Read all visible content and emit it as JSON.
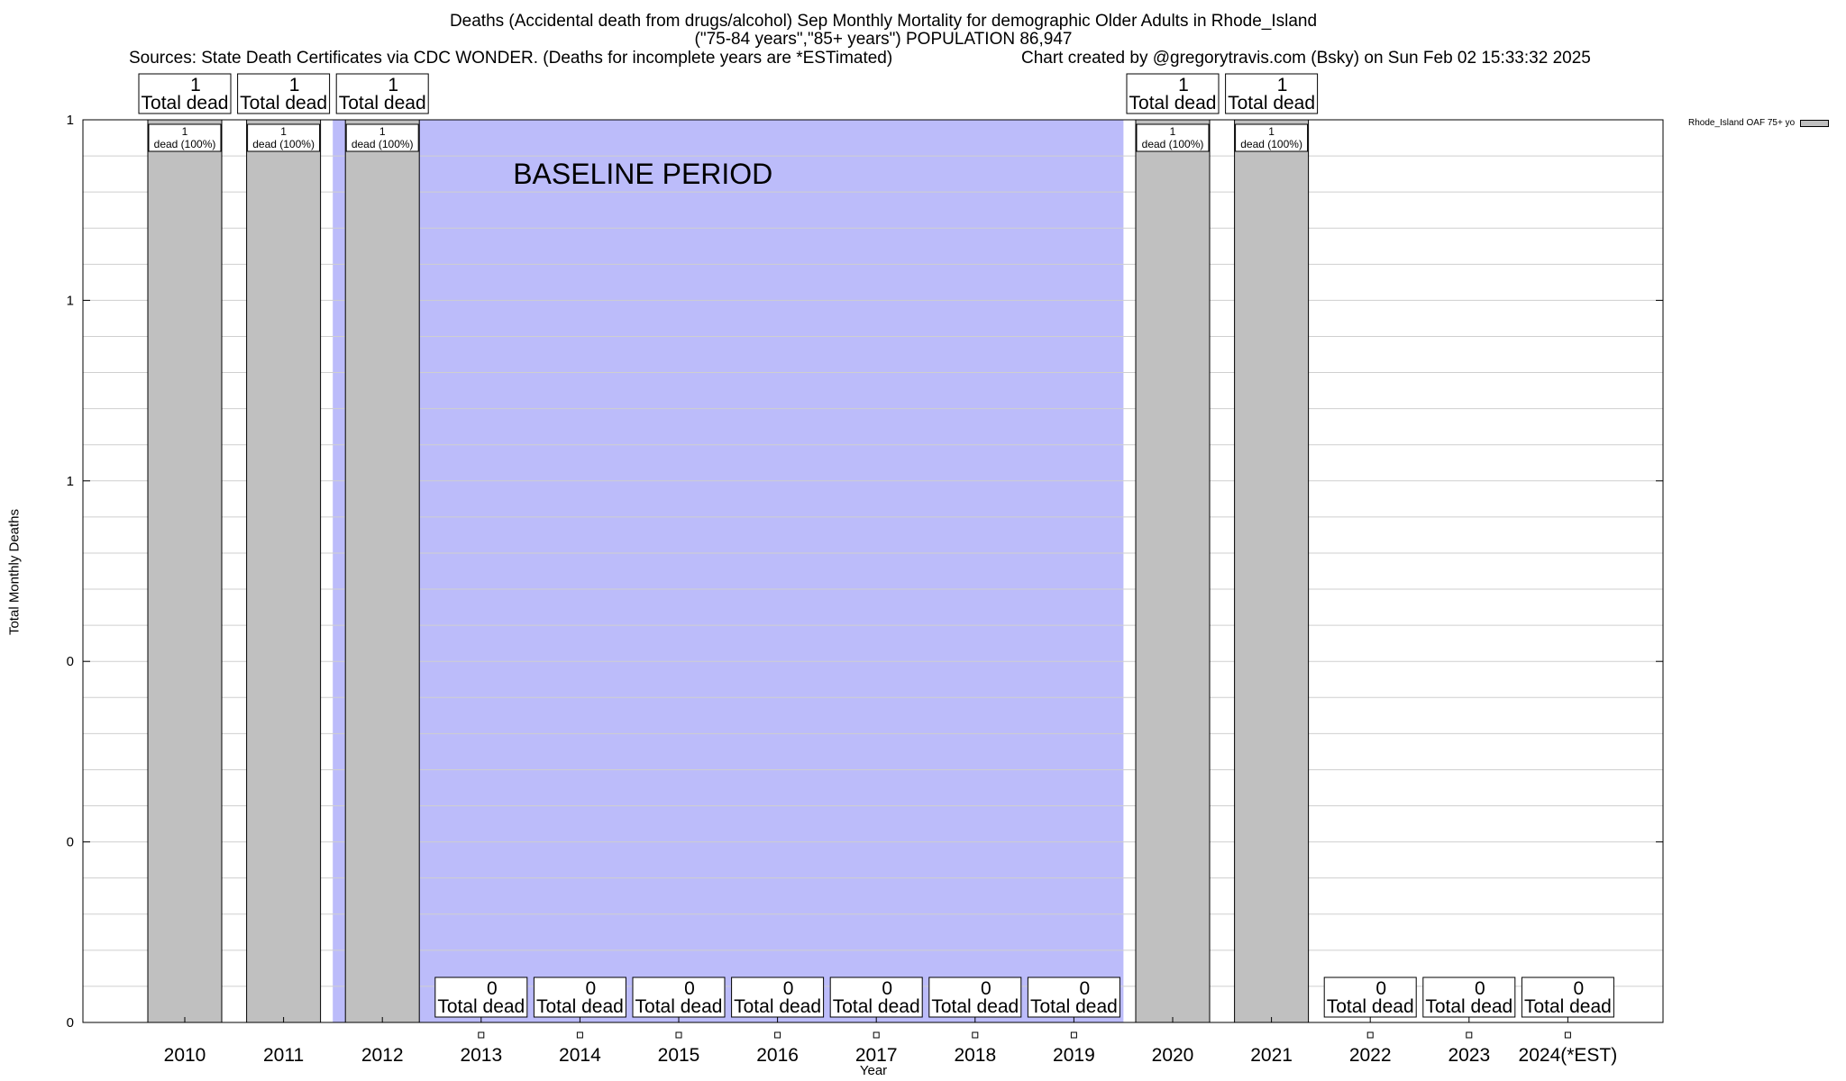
{
  "title": {
    "line1": "Deaths (Accidental death from drugs/alcohol) Sep Monthly Mortality for demographic Older Adults in Rhode_Island",
    "line2": "(\"75-84 years\",\"85+ years\") POPULATION 86,947",
    "sources": "Sources: State Death Certificates via CDC WONDER. (Deaths for incomplete years are *ESTimated)",
    "credit": "Chart created by @gregorytravis.com (Bsky) on Sun Feb 02 15:33:32 2025"
  },
  "chart_data": {
    "type": "bar",
    "xlabel": "Year",
    "ylabel": "Total Monthly Deaths",
    "ylim": [
      0,
      1
    ],
    "y_tick_labels": [
      "0",
      "0",
      "0",
      "1",
      "1",
      "1"
    ],
    "grid": true,
    "legend": {
      "position": "top-right",
      "label": "Rhode_Island OAF 75+ yo"
    },
    "categories": [
      "2010",
      "2011",
      "2012",
      "2013",
      "2014",
      "2015",
      "2016",
      "2017",
      "2018",
      "2019",
      "2020",
      "2021",
      "2022",
      "2023",
      "2024(*EST)"
    ],
    "series": [
      {
        "name": "Rhode_Island OAF 75+ yo",
        "values": [
          1,
          1,
          1,
          0,
          0,
          0,
          0,
          0,
          0,
          0,
          1,
          1,
          0,
          0,
          0
        ]
      }
    ],
    "total_labels": [
      {
        "value": "1",
        "text": "Total dead"
      },
      {
        "value": "1",
        "text": "Total dead"
      },
      {
        "value": "1",
        "text": "Total dead"
      },
      {
        "value": "0",
        "text": "Total dead"
      },
      {
        "value": "0",
        "text": "Total dead"
      },
      {
        "value": "0",
        "text": "Total dead"
      },
      {
        "value": "0",
        "text": "Total dead"
      },
      {
        "value": "0",
        "text": "Total dead"
      },
      {
        "value": "0",
        "text": "Total dead"
      },
      {
        "value": "0",
        "text": "Total dead"
      },
      {
        "value": "1",
        "text": "Total dead"
      },
      {
        "value": "1",
        "text": "Total dead"
      },
      {
        "value": "0",
        "text": "Total dead"
      },
      {
        "value": "0",
        "text": "Total dead"
      },
      {
        "value": "0",
        "text": "Total dead"
      }
    ],
    "bar_labels": [
      {
        "count": "1",
        "pct": "dead (100%)"
      },
      {
        "count": "1",
        "pct": "dead (100%)"
      },
      {
        "count": "1",
        "pct": "dead (100%)"
      },
      null,
      null,
      null,
      null,
      null,
      null,
      null,
      {
        "count": "1",
        "pct": "dead (100%)"
      },
      {
        "count": "1",
        "pct": "dead (100%)"
      },
      null,
      null,
      null
    ],
    "baseline": {
      "label": "BASELINE PERIOD",
      "from": "2012",
      "to": "2019",
      "color": "#bcbcfa"
    },
    "bar_color": "#c0c0c0"
  }
}
